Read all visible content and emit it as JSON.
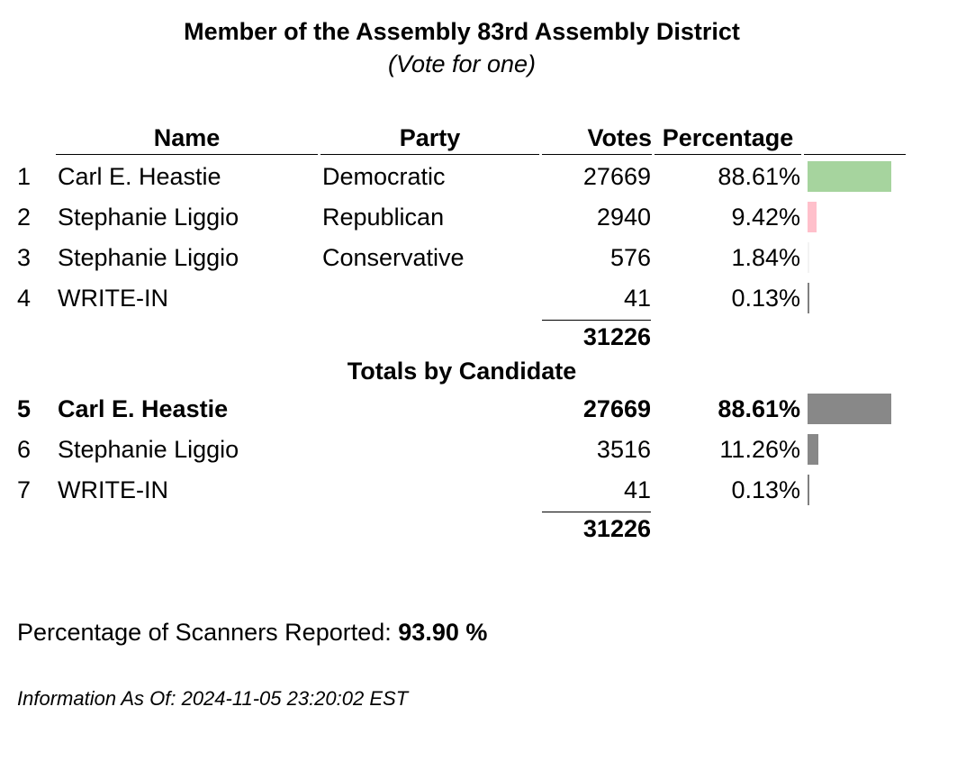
{
  "contest": {
    "title": "Member of the Assembly 83rd Assembly District",
    "subtitle": "(Vote for one)"
  },
  "headers": {
    "name": "Name",
    "party": "Party",
    "votes": "Votes",
    "percentage": "Percentage"
  },
  "results": [
    {
      "num": "1",
      "name": "Carl E. Heastie",
      "party": "Democratic",
      "votes": "27669",
      "percentage": "88.61%",
      "share": 0.8861,
      "color": "#a6d49e"
    },
    {
      "num": "2",
      "name": "Stephanie Liggio",
      "party": "Republican",
      "votes": "2940",
      "percentage": "9.42%",
      "share": 0.0942,
      "color": "#ffc0cb"
    },
    {
      "num": "3",
      "name": "Stephanie Liggio",
      "party": "Conservative",
      "votes": "576",
      "percentage": "1.84%",
      "share": 0.0184,
      "color": "#f3f3f3"
    },
    {
      "num": "4",
      "name": "WRITE-IN",
      "party": "",
      "votes": "41",
      "percentage": "0.13%",
      "share": 0.0013,
      "color": "#808080"
    }
  ],
  "results_total": "31226",
  "totals_section_title": "Totals by Candidate",
  "candidate_totals": [
    {
      "num": "5",
      "name": "Carl E. Heastie",
      "votes": "27669",
      "percentage": "88.61%",
      "share": 0.8861,
      "color": "#888888"
    },
    {
      "num": "6",
      "name": "Stephanie Liggio",
      "votes": "3516",
      "percentage": "11.26%",
      "share": 0.1126,
      "color": "#888888"
    },
    {
      "num": "7",
      "name": "WRITE-IN",
      "votes": "41",
      "percentage": "0.13%",
      "share": 0.0013,
      "color": "#808080"
    }
  ],
  "candidate_total": "31226",
  "footer": {
    "scanners_label": "Percentage of Scanners Reported:",
    "scanners_value": "93.90 %",
    "info": "Information As Of: 2024-11-05 23:20:02 EST"
  }
}
